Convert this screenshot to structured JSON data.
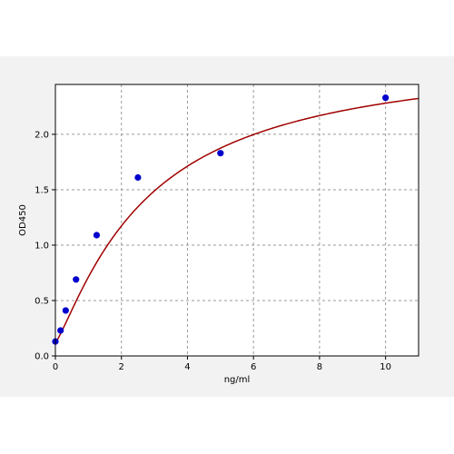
{
  "chart_data": {
    "type": "scatter",
    "title": "",
    "xlabel": "ng/ml",
    "ylabel": "OD450",
    "xlim": [
      0,
      11
    ],
    "ylim": [
      0,
      2.45
    ],
    "x_ticks": [
      0,
      2,
      4,
      6,
      8,
      10
    ],
    "x_tick_labels": [
      "0",
      "2",
      "4",
      "6",
      "8",
      "10"
    ],
    "y_ticks": [
      0.0,
      0.5,
      1.0,
      1.5,
      2.0
    ],
    "y_tick_labels": [
      "0.0",
      "0.5",
      "1.0",
      "1.5",
      "2.0"
    ],
    "grid": true,
    "legend": "none",
    "points": {
      "x": [
        0,
        0.156,
        0.312,
        0.625,
        1.25,
        2.5,
        5,
        10
      ],
      "y": [
        0.13,
        0.23,
        0.41,
        0.69,
        1.09,
        1.61,
        1.83,
        2.33
      ],
      "color": "#0000cc"
    },
    "fit_curve": {
      "model": "four-parameter logistic",
      "a": 0.12,
      "b": 1.2,
      "c": 2.8,
      "d": 2.75,
      "color": "#a00000"
    },
    "background_color": "#f2f2f2",
    "plot_background": "#ffffff",
    "grid_color": "#9a9a9a"
  }
}
